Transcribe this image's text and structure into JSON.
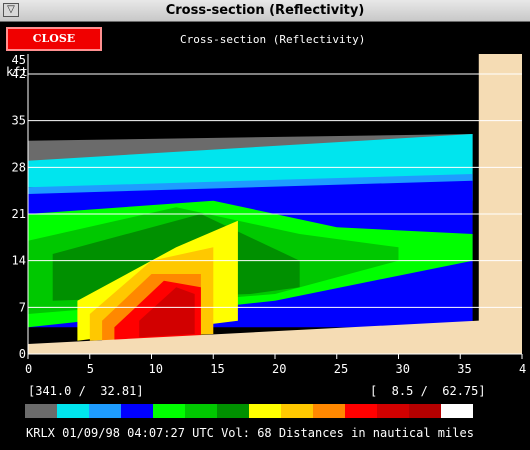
{
  "window": {
    "title": "Cross-section (Reflectivity)"
  },
  "toolbar": {
    "close_label": "CLOSE",
    "subtitle": "Cross-section (Reflectivity)"
  },
  "info": {
    "left": "[341.0 /  32.81]",
    "right": "[  8.5 /  62.75]"
  },
  "status": "KRLX 01/09/98 04:07:27 UTC Vol: 68 Distances in nautical miles",
  "colors": {
    "background": "#000000",
    "ground": "#f5dcb4",
    "close_button": "#f00000"
  },
  "chart_data": {
    "type": "heatmap",
    "title": "",
    "ylabel": "kft",
    "xlabel": "",
    "xlim": [
      0,
      40
    ],
    "ylim": [
      0,
      45
    ],
    "x_ticks": [
      "0",
      "5",
      "10",
      "15",
      "20",
      "25",
      "30",
      "35",
      "4"
    ],
    "y_ticks": [
      "45",
      "42",
      "35",
      "28",
      "21",
      "14",
      "7",
      "0"
    ],
    "horizontal_grid_kft": [
      7,
      14,
      21,
      28,
      35,
      42
    ],
    "colorbar": [
      "#6b6b6b",
      "#00e5ee",
      "#1e9cff",
      "#0000ff",
      "#00ff00",
      "#00c800",
      "#009000",
      "#ffff00",
      "#ffc800",
      "#ff8800",
      "#ff0000",
      "#d20000",
      "#b40000",
      "#ffffff"
    ],
    "echo_layers": [
      {
        "name": "gray",
        "color": "#6b6b6b",
        "top": [
          [
            0,
            32
          ],
          [
            36,
            33
          ]
        ],
        "bottom": [
          [
            0,
            26
          ],
          [
            36,
            27.5
          ]
        ]
      },
      {
        "name": "cyan",
        "color": "#00e5ee",
        "top": [
          [
            0,
            29
          ],
          [
            36,
            33
          ]
        ],
        "bottom": [
          [
            0,
            25
          ],
          [
            36,
            23
          ]
        ]
      },
      {
        "name": "lightblue",
        "color": "#1e9cff",
        "top": [
          [
            0,
            25
          ],
          [
            36,
            27
          ]
        ],
        "bottom": [
          [
            0,
            22.5
          ],
          [
            36,
            21
          ]
        ]
      },
      {
        "name": "blue",
        "color": "#0000ff",
        "top": [
          [
            0,
            24
          ],
          [
            36,
            26
          ]
        ],
        "bottom": [
          [
            0,
            4
          ],
          [
            36,
            4
          ]
        ]
      },
      {
        "name": "green",
        "color": "#00ff00",
        "top": [
          [
            0,
            21
          ],
          [
            15,
            23
          ],
          [
            25,
            19
          ],
          [
            36,
            18
          ]
        ],
        "bottom": [
          [
            0,
            4
          ],
          [
            20,
            8
          ],
          [
            36,
            14
          ]
        ]
      },
      {
        "name": "midgreen",
        "color": "#00c800",
        "top": [
          [
            0,
            17
          ],
          [
            12,
            22
          ],
          [
            22,
            18
          ],
          [
            30,
            16
          ]
        ],
        "bottom": [
          [
            0,
            6
          ],
          [
            20,
            9
          ],
          [
            30,
            14
          ]
        ]
      },
      {
        "name": "darkgreen",
        "color": "#009000",
        "top": [
          [
            2,
            15
          ],
          [
            14,
            21
          ],
          [
            22,
            14
          ]
        ],
        "bottom": [
          [
            2,
            8
          ],
          [
            18,
            9
          ],
          [
            22,
            10
          ]
        ]
      },
      {
        "name": "yellow",
        "color": "#ffff00",
        "top": [
          [
            4,
            8
          ],
          [
            12,
            16
          ],
          [
            17,
            20
          ]
        ],
        "bottom": [
          [
            4,
            2
          ],
          [
            17,
            5
          ]
        ]
      },
      {
        "name": "gold",
        "color": "#ffc800",
        "top": [
          [
            5,
            6
          ],
          [
            10,
            14
          ],
          [
            15,
            16
          ]
        ],
        "bottom": [
          [
            5,
            2
          ],
          [
            15,
            3
          ]
        ]
      },
      {
        "name": "orange",
        "color": "#ff8800",
        "top": [
          [
            6,
            5
          ],
          [
            10,
            12
          ],
          [
            14,
            12
          ]
        ],
        "bottom": [
          [
            6,
            2
          ],
          [
            14,
            3
          ]
        ]
      },
      {
        "name": "red",
        "color": "#ff0000",
        "top": [
          [
            7,
            4
          ],
          [
            11,
            11
          ],
          [
            14,
            10
          ]
        ],
        "bottom": [
          [
            7,
            2
          ],
          [
            14,
            2.5
          ]
        ]
      },
      {
        "name": "crimson",
        "color": "#d20000",
        "top": [
          [
            9,
            5
          ],
          [
            12,
            10
          ],
          [
            13.5,
            9
          ]
        ],
        "bottom": [
          [
            9,
            2.5
          ],
          [
            13.5,
            3
          ]
        ]
      }
    ]
  }
}
